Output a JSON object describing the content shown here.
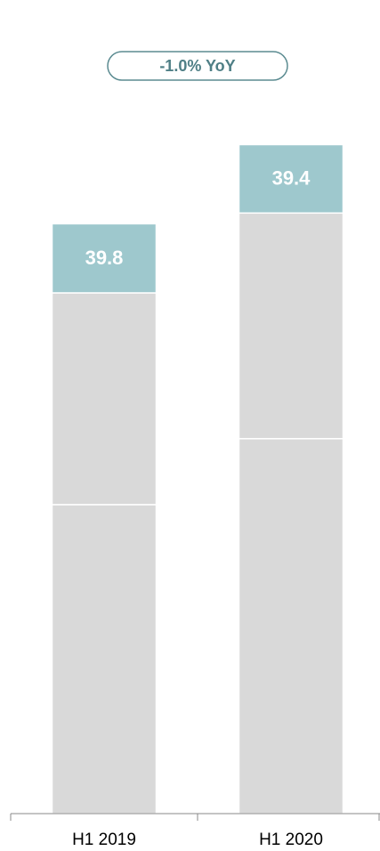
{
  "chart_data": {
    "type": "stacked_bar",
    "annotation": "-1.0% YoY",
    "categories": [
      "H1 2019",
      "H1 2020"
    ],
    "series": [
      {
        "color": "#d9d9d9",
        "values": [
          178,
          216
        ]
      },
      {
        "color": "#d9d9d9",
        "values": [
          122,
          130
        ]
      },
      {
        "color": "#9ec8cd",
        "values": [
          39.8,
          39.4
        ]
      }
    ],
    "ylim": [
      0,
      400
    ]
  }
}
